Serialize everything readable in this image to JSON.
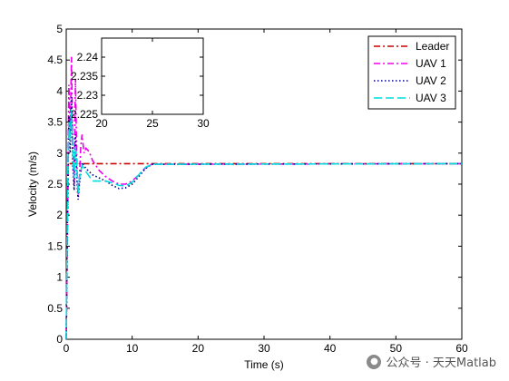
{
  "chart_data": [
    {
      "type": "line",
      "title": "",
      "xlabel": "Time (s)",
      "ylabel": "Velocity (m/s)",
      "xlim": [
        0,
        60
      ],
      "ylim": [
        0,
        5
      ],
      "xticks": [
        0,
        10,
        20,
        30,
        40,
        50,
        60
      ],
      "yticks": [
        0,
        0.5,
        1,
        1.5,
        2,
        2.5,
        3,
        3.5,
        4,
        4.5,
        5
      ],
      "grid": false,
      "legend_position": "top-right",
      "series": [
        {
          "name": "Leader",
          "color": "#cc0000",
          "style": "dash-dot",
          "points": [
            [
              0,
              0
            ],
            [
              0.3,
              2.83
            ],
            [
              60,
              2.83
            ]
          ]
        },
        {
          "name": "UAV 1",
          "color": "#ee00ee",
          "style": "dash-dot",
          "points": [
            [
              0,
              0
            ],
            [
              0.2,
              2.2
            ],
            [
              0.4,
              4.1
            ],
            [
              0.6,
              3.3
            ],
            [
              0.8,
              4.55
            ],
            [
              1.0,
              3.0
            ],
            [
              1.2,
              2.5
            ],
            [
              1.4,
              4.2
            ],
            [
              1.6,
              2.9
            ],
            [
              1.8,
              2.3
            ],
            [
              2.0,
              2.6
            ],
            [
              2.2,
              3.1
            ],
            [
              2.4,
              3.3
            ],
            [
              2.7,
              3.0
            ],
            [
              3.0,
              3.08
            ],
            [
              3.5,
              3.02
            ],
            [
              4.0,
              2.88
            ],
            [
              5,
              2.72
            ],
            [
              6,
              2.62
            ],
            [
              7,
              2.55
            ],
            [
              8,
              2.5
            ],
            [
              9,
              2.5
            ],
            [
              10,
              2.55
            ],
            [
              11,
              2.65
            ],
            [
              12,
              2.76
            ],
            [
              13,
              2.82
            ],
            [
              60,
              2.83
            ]
          ]
        },
        {
          "name": "UAV 2",
          "color": "#000088",
          "style": "dotted",
          "points": [
            [
              0,
              0
            ],
            [
              0.2,
              2.0
            ],
            [
              0.4,
              3.6
            ],
            [
              0.6,
              3.0
            ],
            [
              0.8,
              3.9
            ],
            [
              1.0,
              2.8
            ],
            [
              1.2,
              2.4
            ],
            [
              1.4,
              3.3
            ],
            [
              1.6,
              2.6
            ],
            [
              1.8,
              2.25
            ],
            [
              2.0,
              2.5
            ],
            [
              2.4,
              2.85
            ],
            [
              3.0,
              2.75
            ],
            [
              4,
              2.65
            ],
            [
              5,
              2.6
            ],
            [
              6,
              2.55
            ],
            [
              7,
              2.48
            ],
            [
              8,
              2.43
            ],
            [
              9,
              2.44
            ],
            [
              10,
              2.5
            ],
            [
              11,
              2.62
            ],
            [
              12,
              2.75
            ],
            [
              13,
              2.82
            ],
            [
              60,
              2.83
            ]
          ]
        },
        {
          "name": "UAV 3",
          "color": "#00dddd",
          "style": "dashed",
          "points": [
            [
              0,
              0
            ],
            [
              0.2,
              2.4
            ],
            [
              0.4,
              3.5
            ],
            [
              0.6,
              3.2
            ],
            [
              0.8,
              3.7
            ],
            [
              1.0,
              3.0
            ],
            [
              1.2,
              2.6
            ],
            [
              1.4,
              3.1
            ],
            [
              1.6,
              2.8
            ],
            [
              1.8,
              2.35
            ],
            [
              2.0,
              2.6
            ],
            [
              2.4,
              2.8
            ],
            [
              3.0,
              2.7
            ],
            [
              4,
              2.55
            ],
            [
              5,
              2.55
            ],
            [
              6,
              2.55
            ],
            [
              7,
              2.52
            ],
            [
              8,
              2.48
            ],
            [
              9,
              2.47
            ],
            [
              10,
              2.53
            ],
            [
              11,
              2.65
            ],
            [
              12,
              2.77
            ],
            [
              13,
              2.82
            ],
            [
              60,
              2.83
            ]
          ]
        }
      ]
    },
    {
      "type": "line",
      "title": "",
      "xlabel": "",
      "ylabel": "",
      "xlim": [
        20,
        30
      ],
      "ylim": [
        2.225,
        2.245
      ],
      "xticks": [
        20,
        25,
        30
      ],
      "yticks": [
        2.225,
        2.23,
        2.235,
        2.24
      ],
      "ytick_labels": [
        "2.225",
        "2.23",
        "2.235",
        "2.24"
      ],
      "grid": false,
      "series": []
    }
  ],
  "watermark": {
    "icon": "wechat-icon",
    "text": "公众号 · 天天Matlab"
  }
}
